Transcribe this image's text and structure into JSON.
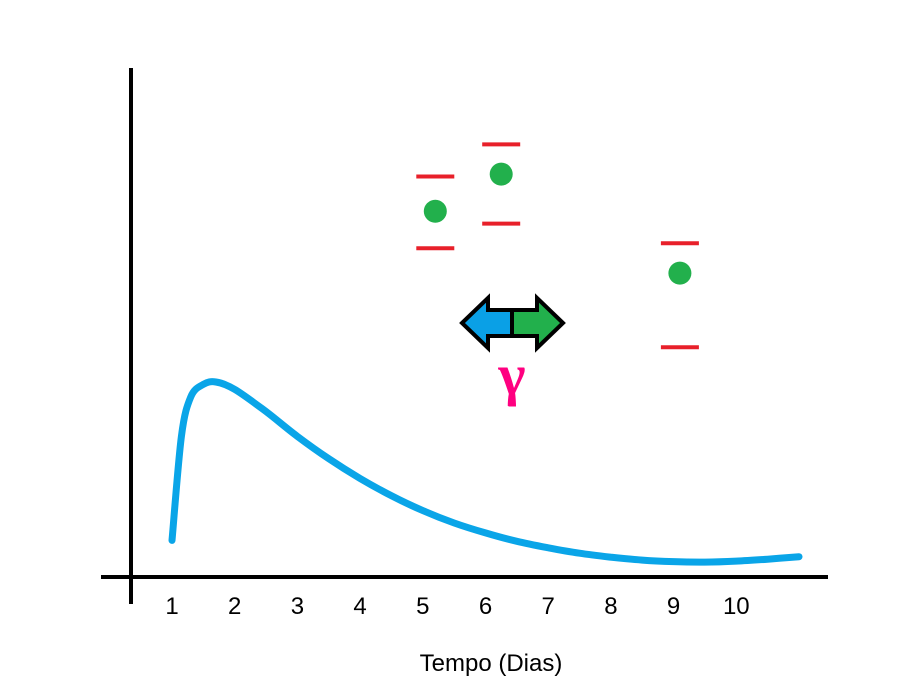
{
  "figure": {
    "x_axis": {
      "title": "Tempo (Dias)",
      "ticks": [
        "1",
        "2",
        "3",
        "4",
        "5",
        "6",
        "7",
        "8",
        "9",
        "10"
      ]
    },
    "annotation": {
      "symbol": "γ",
      "color": "#ff0080",
      "arrow_left_color": "#0aa0e6",
      "arrow_right_color": "#22b04c"
    },
    "colors": {
      "curve": "#0aa5e8",
      "points": "#22b04c",
      "error_bars": "#e8202a",
      "axes": "#000000"
    }
  },
  "chart_data": {
    "type": "line",
    "xlabel": "Tempo (Dias)",
    "ylabel": "",
    "xlim": [
      0.1,
      11.2
    ],
    "ylim": [
      0,
      10
    ],
    "series": [
      {
        "kind": "curve",
        "x": [
          1.0,
          1.15,
          1.3,
          1.5,
          1.7,
          2.0,
          2.5,
          3.0,
          3.5,
          4.0,
          4.5,
          5.0,
          5.5,
          6.0,
          6.5,
          7.0,
          7.5,
          8.0,
          8.5,
          9.0,
          9.5,
          10.0,
          10.5,
          11.0
        ],
        "y": [
          0.7,
          2.8,
          3.6,
          3.85,
          3.9,
          3.75,
          3.3,
          2.8,
          2.35,
          1.95,
          1.6,
          1.3,
          1.05,
          0.85,
          0.68,
          0.55,
          0.44,
          0.36,
          0.3,
          0.27,
          0.26,
          0.28,
          0.32,
          0.37
        ]
      },
      {
        "kind": "points",
        "x": [
          5.2,
          6.25,
          9.1
        ],
        "y": [
          7.35,
          8.1,
          6.1
        ],
        "err_low": [
          6.6,
          7.1,
          4.6
        ],
        "err_high": [
          8.05,
          8.7,
          6.7
        ]
      }
    ]
  }
}
